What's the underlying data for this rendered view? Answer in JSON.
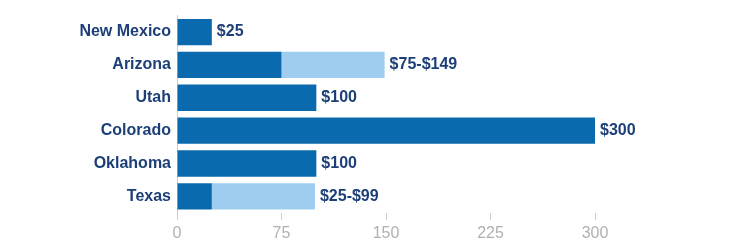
{
  "chart_data": {
    "type": "bar",
    "orientation": "horizontal",
    "categories": [
      "New Mexico",
      "Arizona",
      "Utah",
      "Colorado",
      "Oklahoma",
      "Texas"
    ],
    "series": [
      {
        "color": "#0b6aad",
        "values": [
          25,
          75,
          100,
          300,
          100,
          25
        ],
        "value_labels": [
          "$25",
          null,
          "$100",
          "$300",
          "$100",
          null
        ]
      },
      {
        "color": "#9ecdf0",
        "values": [
          null,
          [
            75,
            149
          ],
          null,
          null,
          null,
          [
            25,
            99
          ]
        ],
        "value_labels": [
          null,
          "$75-$149",
          null,
          null,
          null,
          "$25-$99"
        ]
      }
    ],
    "xlim": [
      0,
      300
    ],
    "xticks": [
      0,
      75,
      150,
      225,
      300
    ],
    "grid": false,
    "data_labels": true
  }
}
